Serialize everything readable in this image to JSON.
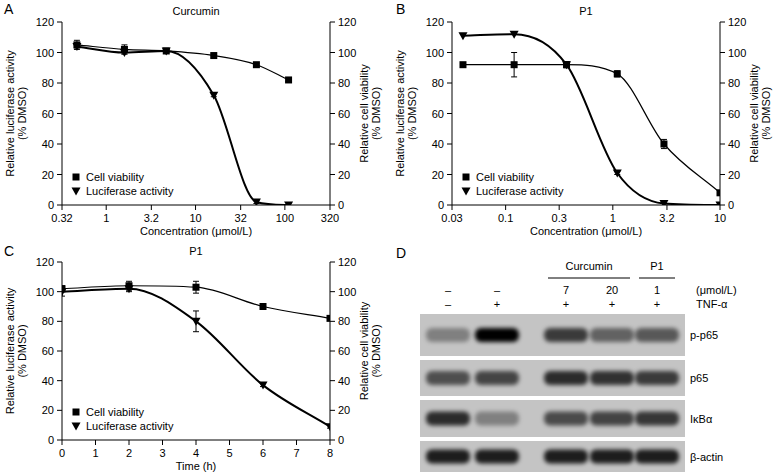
{
  "chart_data": [
    {
      "panel_label": "A",
      "type": "line",
      "title": "Curcumin",
      "xlabel": "Concentration (μmol/L)",
      "ylabel": [
        "Relative luciferase activity",
        "(% DMSO)"
      ],
      "y2label": [
        "Relative cell viability",
        "(% DMSO)"
      ],
      "log": "x",
      "xlim": [
        0.32,
        320
      ],
      "xticks": [
        0.32,
        1,
        3.2,
        10,
        32,
        100,
        320
      ],
      "ylim": [
        0,
        120
      ],
      "yticks": [
        0,
        20,
        40,
        60,
        80,
        100,
        120
      ],
      "y2lim": [
        0,
        120
      ],
      "y2ticks": [
        0,
        20,
        40,
        60,
        80,
        100,
        120
      ],
      "legend": "lower left",
      "x": [
        0.47,
        1.6,
        4.7,
        16,
        48,
        110
      ],
      "series": [
        {
          "name": "Cell viability",
          "axis": "y2",
          "marker": "square",
          "color": "#000000",
          "values": [
            105,
            102,
            101,
            98,
            92,
            82
          ],
          "errors": [
            3,
            3,
            1,
            1,
            1,
            1
          ]
        },
        {
          "name": "Luciferase activity",
          "axis": "y",
          "marker": "triangle-down",
          "color": "#000000",
          "values": [
            104,
            100,
            101,
            72,
            2,
            0
          ],
          "errors": [
            1,
            1,
            1,
            1,
            1,
            0
          ]
        }
      ]
    },
    {
      "panel_label": "B",
      "type": "line",
      "title": "P1",
      "xlabel": "Concentration (μmol/L)",
      "ylabel": [
        "Relative luciferase activity",
        "(% DMSO)"
      ],
      "y2label": [
        "Relative cell viability",
        "(% DMSO)"
      ],
      "log": "x",
      "xlim": [
        0.0316,
        10
      ],
      "xticks": [
        {
          "value": 0.0316,
          "label": "0.03"
        },
        0.1,
        {
          "value": 0.316,
          "label": "0.3"
        },
        1,
        3.2,
        10
      ],
      "ylim": [
        0,
        120
      ],
      "yticks": [
        0,
        20,
        40,
        60,
        80,
        100,
        120
      ],
      "y2lim": [
        0,
        120
      ],
      "y2ticks": [
        0,
        20,
        40,
        60,
        80,
        100,
        120
      ],
      "legend": "lower left",
      "x": [
        0.04,
        0.12,
        0.37,
        1.1,
        3,
        10
      ],
      "series": [
        {
          "name": "Cell viability",
          "axis": "y2",
          "marker": "square",
          "color": "#000000",
          "values": [
            92,
            92,
            92,
            86,
            40,
            8
          ],
          "errors": [
            0,
            8,
            2,
            2,
            3,
            0
          ]
        },
        {
          "name": "Luciferase activity",
          "axis": "y",
          "marker": "triangle-down",
          "color": "#000000",
          "values": [
            111,
            112,
            92,
            21,
            1,
            0
          ],
          "errors": [
            0,
            0,
            1,
            1,
            0,
            0
          ]
        }
      ]
    },
    {
      "panel_label": "C",
      "type": "line",
      "title": "P1",
      "xlabel": "Time (h)",
      "ylabel": [
        "Relative luciferase activity",
        "(% DMSO)"
      ],
      "y2label": [
        "Relative cell viability",
        "(% DMSO)"
      ],
      "xlim": [
        0,
        8
      ],
      "xticks": [
        0,
        1,
        2,
        3,
        4,
        5,
        6,
        7,
        8
      ],
      "ylim": [
        0,
        120
      ],
      "yticks": [
        0,
        20,
        40,
        60,
        80,
        100,
        120
      ],
      "y2lim": [
        0,
        120
      ],
      "y2ticks": [
        0,
        20,
        40,
        60,
        80,
        100,
        120
      ],
      "legend": "lower left",
      "x": [
        0,
        2,
        4,
        6,
        8
      ],
      "series": [
        {
          "name": "Cell viability",
          "axis": "y2",
          "marker": "square",
          "color": "#000000",
          "values": [
            102,
            104,
            103,
            90,
            82
          ],
          "errors": [
            2,
            3,
            4,
            1,
            1
          ]
        },
        {
          "name": "Luciferase activity",
          "axis": "y",
          "marker": "triangle-down",
          "color": "#000000",
          "values": [
            100,
            102,
            80,
            37,
            9
          ],
          "errors": [
            3,
            2,
            7,
            1,
            1
          ]
        }
      ]
    }
  ],
  "blot": {
    "panel_label": "D",
    "groups": [
      {
        "label": "Curcumin",
        "lanes": [
          2,
          3
        ]
      },
      {
        "label": "P1",
        "lanes": [
          4,
          4
        ]
      }
    ],
    "unit": "(μmol/L)",
    "concentrations": [
      "–",
      "–",
      "7",
      "20",
      "1"
    ],
    "treatment": {
      "label": "TNF-α",
      "values": [
        "–",
        "+",
        "+",
        "+",
        "+"
      ]
    },
    "rows": [
      {
        "label": "p-p65",
        "intensity": [
          0.35,
          1.0,
          0.7,
          0.5,
          0.55
        ]
      },
      {
        "label": "p65",
        "intensity": [
          0.6,
          0.65,
          0.78,
          0.75,
          0.7
        ]
      },
      {
        "label": "IκBα",
        "intensity": [
          0.78,
          0.35,
          0.62,
          0.66,
          0.72
        ]
      },
      {
        "label": "β-actin",
        "intensity": [
          0.85,
          0.85,
          0.85,
          0.85,
          0.85
        ]
      }
    ]
  }
}
